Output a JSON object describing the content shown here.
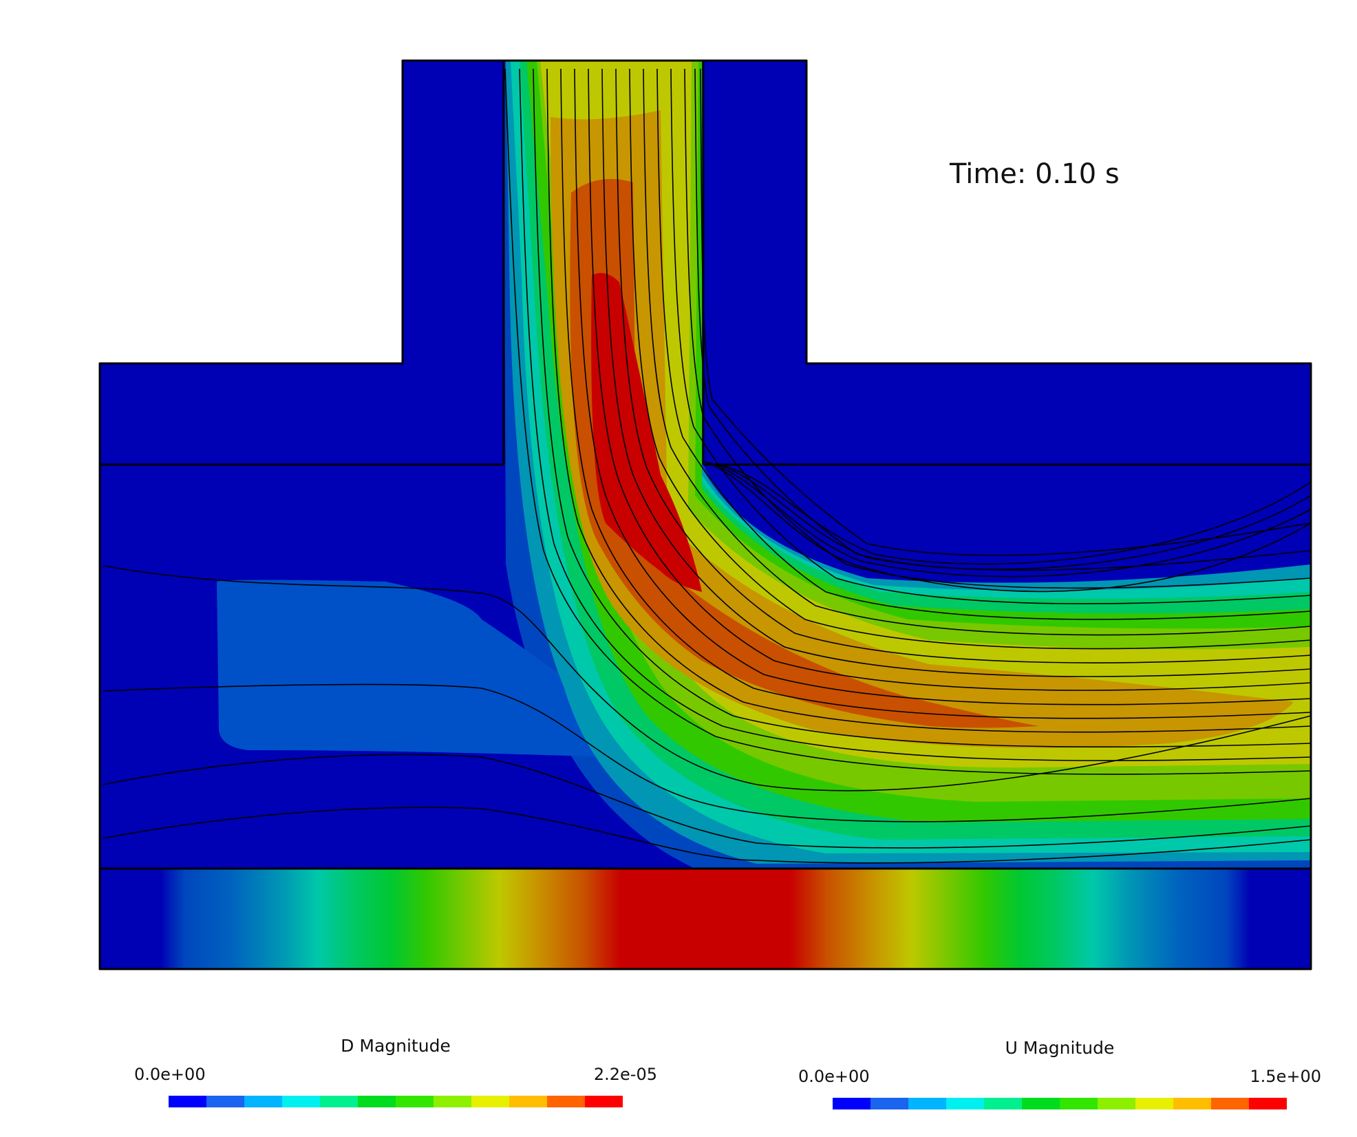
{
  "time_label": "Time: 0.10 s",
  "colorbars": [
    {
      "title": "D Magnitude",
      "min": "0.0e+00",
      "max": "2.2e-05"
    },
    {
      "title": "U Magnitude",
      "min": "0.0e+00",
      "max": "1.5e+00"
    }
  ],
  "palette": [
    "#0000ff",
    "#1a64f0",
    "#00b4ff",
    "#00f0f0",
    "#00f090",
    "#00dc1e",
    "#32e600",
    "#8cf000",
    "#e6f000",
    "#ffbe00",
    "#ff6400",
    "#ff0000"
  ],
  "colors": {
    "background": "#0000b4",
    "outline": "#000000"
  }
}
